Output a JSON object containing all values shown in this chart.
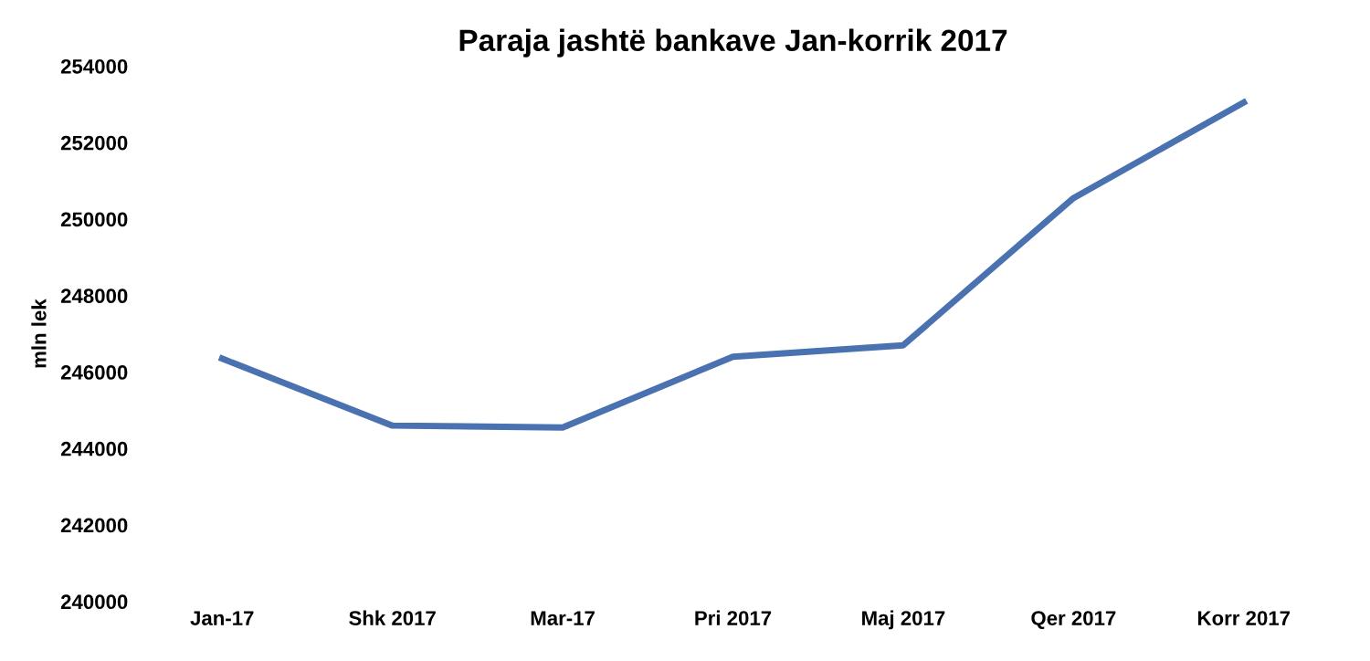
{
  "chart_data": {
    "type": "line",
    "title": "Paraja jashtë bankave Jan-korrik 2017",
    "ylabel": "mln lek",
    "categories": [
      "Jan-17",
      "Shk 2017",
      "Mar-17",
      "Pri 2017",
      "Maj 2017",
      "Qer 2017",
      "Korr 2017"
    ],
    "series": [
      {
        "color": "#4a72b0",
        "values": [
          246350,
          244600,
          244550,
          246400,
          246700,
          250550,
          253050
        ]
      }
    ],
    "ylim": [
      240000,
      254000
    ],
    "yticks": [
      240000,
      242000,
      244000,
      246000,
      248000,
      250000,
      252000,
      254000
    ],
    "grid": false,
    "legend": false,
    "marker": "none",
    "line_style": "solid"
  }
}
